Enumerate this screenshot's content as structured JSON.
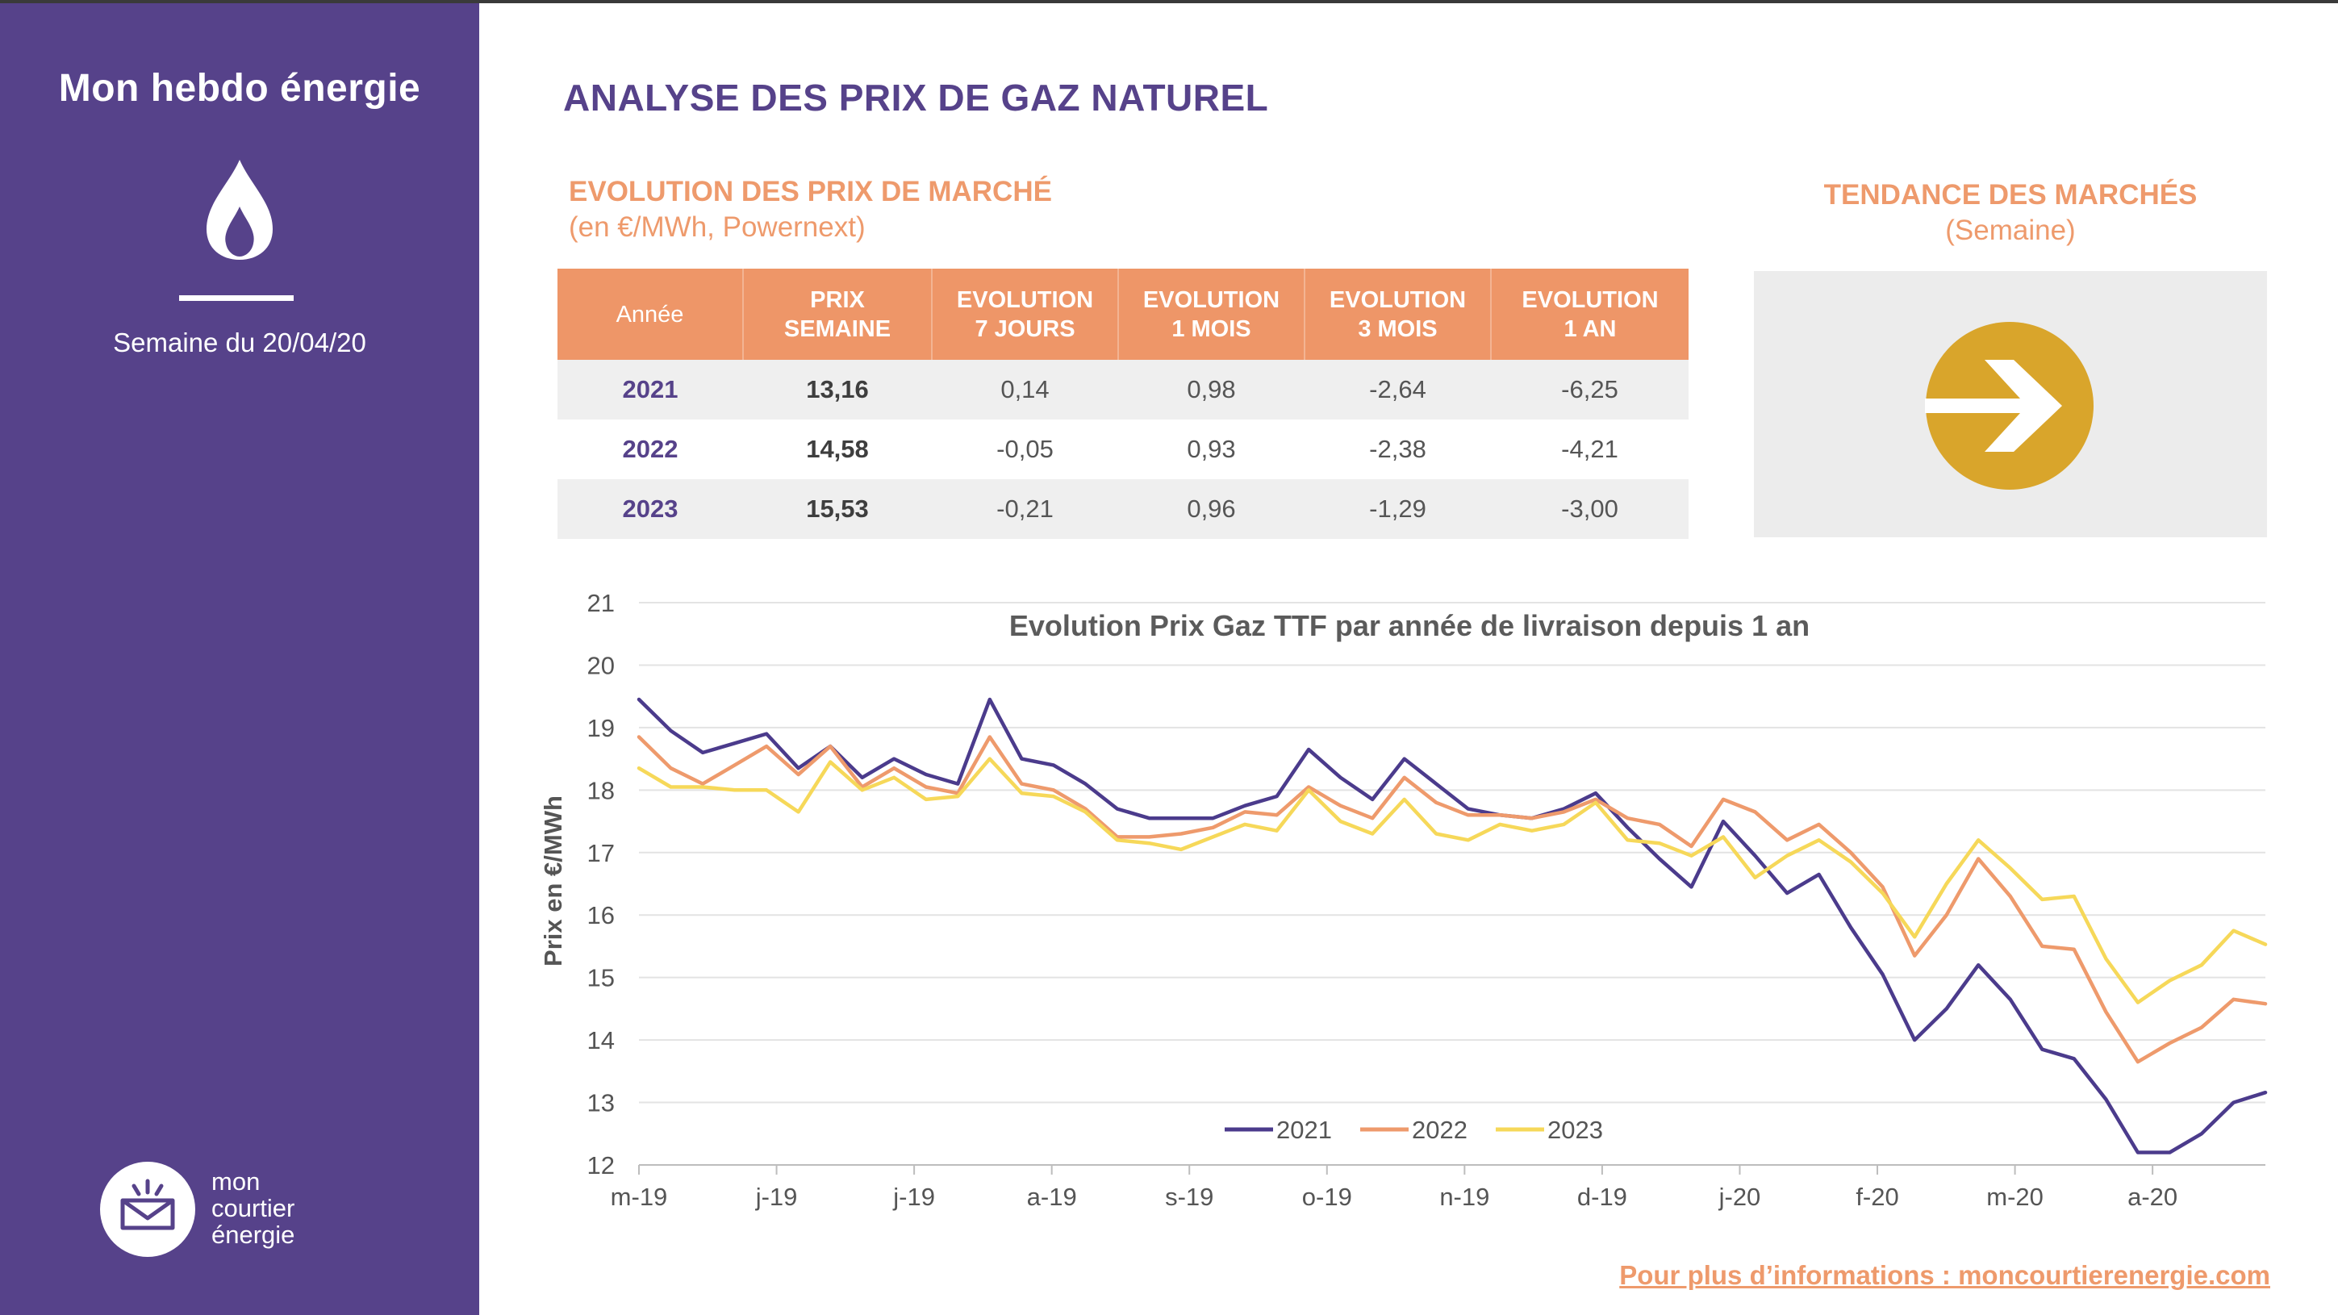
{
  "sidebar": {
    "title": "Mon hebdo énergie",
    "week_label": "Semaine du 20/04/20",
    "logo_lines": [
      "mon",
      "courtier",
      "énergie"
    ]
  },
  "page": {
    "title": "ANALYSE DES PRIX DE GAZ NATUREL",
    "market_section_title": "EVOLUTION DES PRIX DE MARCHÉ",
    "market_section_sub": "(en €/MWh, Powernext)",
    "trend_title": "TENDANCE DES MARCHÉS",
    "trend_sub": "(Semaine)",
    "trend_direction": "stable",
    "footer_link": "Pour plus d’informations : moncourtierenergie.com"
  },
  "table": {
    "headers": [
      [
        "Année"
      ],
      [
        "PRIX",
        "SEMAINE"
      ],
      [
        "EVOLUTION",
        "7 JOURS"
      ],
      [
        "EVOLUTION",
        "1 MOIS"
      ],
      [
        "EVOLUTION",
        "3 MOIS"
      ],
      [
        "EVOLUTION",
        "1 AN"
      ]
    ],
    "rows": [
      [
        "2021",
        "13,16",
        "0,14",
        "0,98",
        "-2,64",
        "-6,25"
      ],
      [
        "2022",
        "14,58",
        "-0,05",
        "0,93",
        "-2,38",
        "-4,21"
      ],
      [
        "2023",
        "15,53",
        "-0,21",
        "0,96",
        "-1,29",
        "-3,00"
      ]
    ]
  },
  "colors": {
    "primary": "#56428a",
    "accent": "#ee9a6c",
    "header_bg": "#ee9668",
    "trend_arrow": "#d9a52b",
    "series_2021": "#4b3b8c",
    "series_2022": "#ee9a6c",
    "series_2023": "#f6d859"
  },
  "chart_data": {
    "type": "line",
    "title": "Evolution Prix Gaz TTF par année de livraison depuis 1 an",
    "xlabel": "",
    "ylabel": "Prix en €/MWh",
    "ylim": [
      12,
      21
    ],
    "yticks": [
      12,
      13,
      14,
      15,
      16,
      17,
      18,
      19,
      20,
      21
    ],
    "xtick_labels": [
      "m-19",
      "j-19",
      "j-19",
      "a-19",
      "s-19",
      "o-19",
      "n-19",
      "d-19",
      "j-20",
      "f-20",
      "m-20",
      "a-20"
    ],
    "grid": true,
    "legend": "bottom",
    "series": [
      {
        "name": "2021",
        "values": [
          19.45,
          18.95,
          18.6,
          18.75,
          18.9,
          18.35,
          18.7,
          18.2,
          18.5,
          18.25,
          18.1,
          19.45,
          18.5,
          18.4,
          18.1,
          17.7,
          17.55,
          17.55,
          17.55,
          17.75,
          17.9,
          18.65,
          18.2,
          17.85,
          18.5,
          18.1,
          17.7,
          17.6,
          17.55,
          17.7,
          17.95,
          17.4,
          16.9,
          16.45,
          17.5,
          16.95,
          16.35,
          16.65,
          15.8,
          15.05,
          14.0,
          14.5,
          15.2,
          14.65,
          13.85,
          13.7,
          13.05,
          12.2,
          12.2,
          12.5,
          13.0,
          13.16
        ]
      },
      {
        "name": "2022",
        "values": [
          18.85,
          18.35,
          18.1,
          18.4,
          18.7,
          18.25,
          18.7,
          18.05,
          18.35,
          18.05,
          17.95,
          18.85,
          18.1,
          18.0,
          17.7,
          17.25,
          17.25,
          17.3,
          17.4,
          17.65,
          17.6,
          18.05,
          17.75,
          17.55,
          18.2,
          17.8,
          17.6,
          17.6,
          17.55,
          17.65,
          17.85,
          17.55,
          17.45,
          17.1,
          17.85,
          17.65,
          17.2,
          17.45,
          17.0,
          16.45,
          15.35,
          16.0,
          16.9,
          16.3,
          15.5,
          15.45,
          14.45,
          13.65,
          13.95,
          14.2,
          14.65,
          14.58
        ]
      },
      {
        "name": "2023",
        "values": [
          18.35,
          18.05,
          18.05,
          18.0,
          18.0,
          17.65,
          18.45,
          18.0,
          18.2,
          17.85,
          17.9,
          18.5,
          17.95,
          17.9,
          17.65,
          17.2,
          17.15,
          17.05,
          17.25,
          17.45,
          17.35,
          18.0,
          17.5,
          17.3,
          17.85,
          17.3,
          17.2,
          17.45,
          17.35,
          17.45,
          17.8,
          17.2,
          17.15,
          16.95,
          17.25,
          16.6,
          16.95,
          17.2,
          16.85,
          16.35,
          15.65,
          16.5,
          17.2,
          16.75,
          16.25,
          16.3,
          15.3,
          14.6,
          14.95,
          15.2,
          15.75,
          15.53
        ]
      }
    ]
  }
}
